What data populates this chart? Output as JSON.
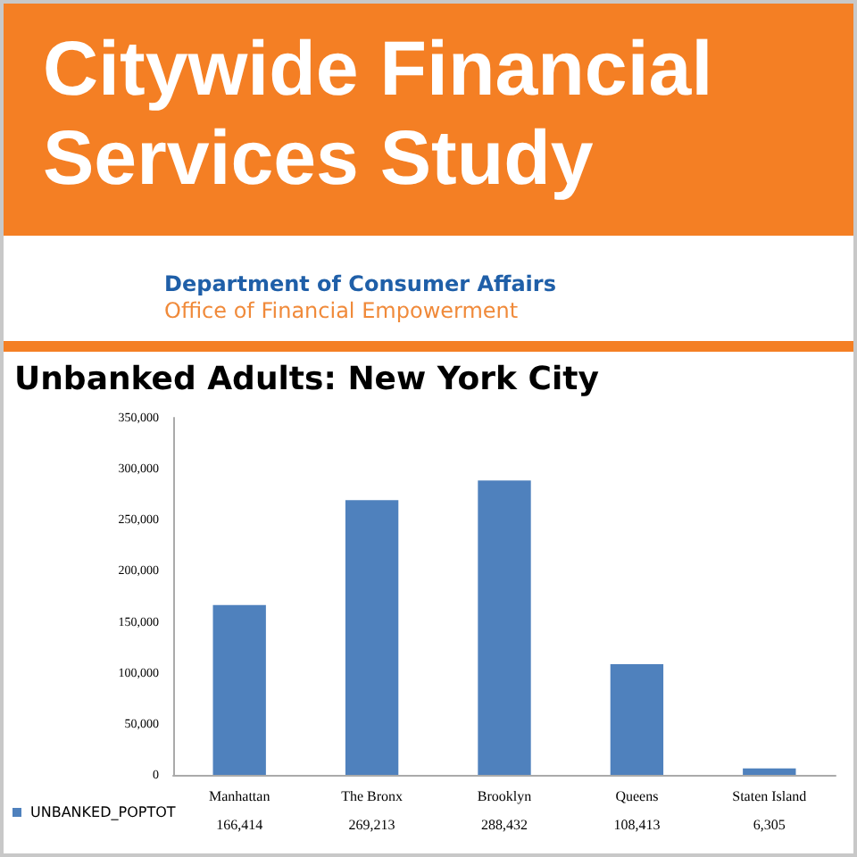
{
  "chart_data": {
    "type": "bar",
    "title": "Citywide Financial Services Study",
    "subtitle": "Unbanked Adults: New York City",
    "annotations": [
      "Department of Consumer Affairs",
      "Office of Financial Empowerment"
    ],
    "categories": [
      "Manhattan",
      "The Bronx",
      "Brooklyn",
      "Queens",
      "Staten Island"
    ],
    "series": [
      {
        "name": "UNBANKED_POPTOT",
        "color": "#4f81bd",
        "values": [
          166414,
          269213,
          288432,
          108413,
          6305
        ],
        "value_labels": [
          "166,414",
          "269,213",
          "288,432",
          "108,413",
          "6,305"
        ]
      }
    ],
    "ylim": [
      0,
      350000
    ],
    "yticks": [
      {
        "value": 0,
        "label": "0"
      },
      {
        "value": 50000,
        "label": "50,000"
      },
      {
        "value": 100000,
        "label": "100,000"
      },
      {
        "value": 150000,
        "label": "150,000"
      },
      {
        "value": 200000,
        "label": "200,000"
      },
      {
        "value": 250000,
        "label": "250,000"
      },
      {
        "value": 300000,
        "label": "300,000"
      },
      {
        "value": 350000,
        "label": "350,000"
      }
    ],
    "grid": false,
    "legend": "bottom left"
  }
}
